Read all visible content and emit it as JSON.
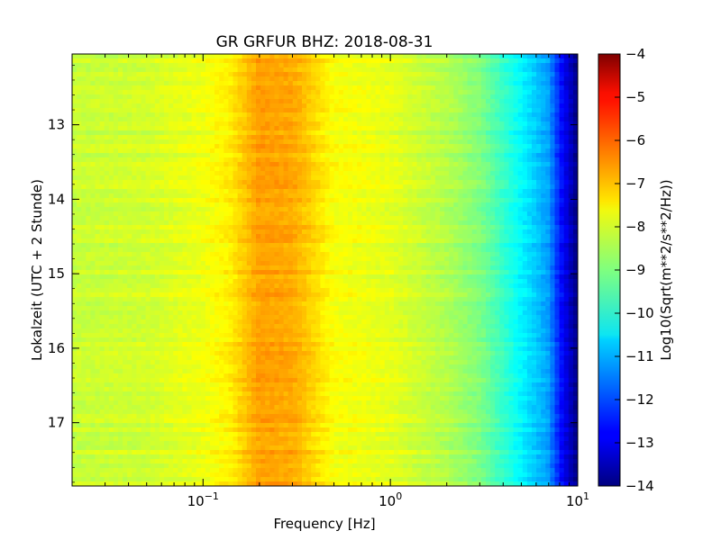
{
  "chart_data": {
    "type": "heatmap",
    "title": "GR GRFUR BHZ: 2018-08-31",
    "xlabel": "Frequency [Hz]",
    "ylabel": "Lokalzeit (UTC + 2 Stunde)",
    "x_scale": "log",
    "xlim": [
      0.02,
      10
    ],
    "ylim": [
      12.05,
      17.85
    ],
    "y_inverted": true,
    "x_ticks": [
      {
        "value": 0.1,
        "base": "10",
        "exp": "−1"
      },
      {
        "value": 1,
        "base": "10",
        "exp": "0"
      },
      {
        "value": 10,
        "base": "10",
        "exp": "1"
      }
    ],
    "y_ticks": [
      {
        "value": 13,
        "label": "13"
      },
      {
        "value": 14,
        "label": "14"
      },
      {
        "value": 15,
        "label": "15"
      },
      {
        "value": 16,
        "label": "16"
      },
      {
        "value": 17,
        "label": "17"
      }
    ],
    "colormap": "jet",
    "colorbar": {
      "label": "Log10(Sqrt(m**2/s**2/Hz))",
      "range": [
        -14,
        -4
      ],
      "ticks": [
        {
          "value": -4,
          "label": "−4"
        },
        {
          "value": -5,
          "label": "−5"
        },
        {
          "value": -6,
          "label": "−6"
        },
        {
          "value": -7,
          "label": "−7"
        },
        {
          "value": -8,
          "label": "−8"
        },
        {
          "value": -9,
          "label": "−9"
        },
        {
          "value": -10,
          "label": "−10"
        },
        {
          "value": -11,
          "label": "−11"
        },
        {
          "value": -12,
          "label": "−12"
        },
        {
          "value": -13,
          "label": "−13"
        },
        {
          "value": -14,
          "label": "−14"
        }
      ]
    },
    "spectrum_profile": [
      {
        "freq": 0.02,
        "value": -8.3
      },
      {
        "freq": 0.05,
        "value": -8.2
      },
      {
        "freq": 0.1,
        "value": -7.9
      },
      {
        "freq": 0.14,
        "value": -7.6
      },
      {
        "freq": 0.2,
        "value": -6.8
      },
      {
        "freq": 0.3,
        "value": -6.9
      },
      {
        "freq": 0.5,
        "value": -7.8
      },
      {
        "freq": 1,
        "value": -8.0
      },
      {
        "freq": 2,
        "value": -8.5
      },
      {
        "freq": 3,
        "value": -9.0
      },
      {
        "freq": 5,
        "value": -10.3
      },
      {
        "freq": 7,
        "value": -11.2
      },
      {
        "freq": 8,
        "value": -12.5
      },
      {
        "freq": 10,
        "value": -14.0
      }
    ]
  }
}
